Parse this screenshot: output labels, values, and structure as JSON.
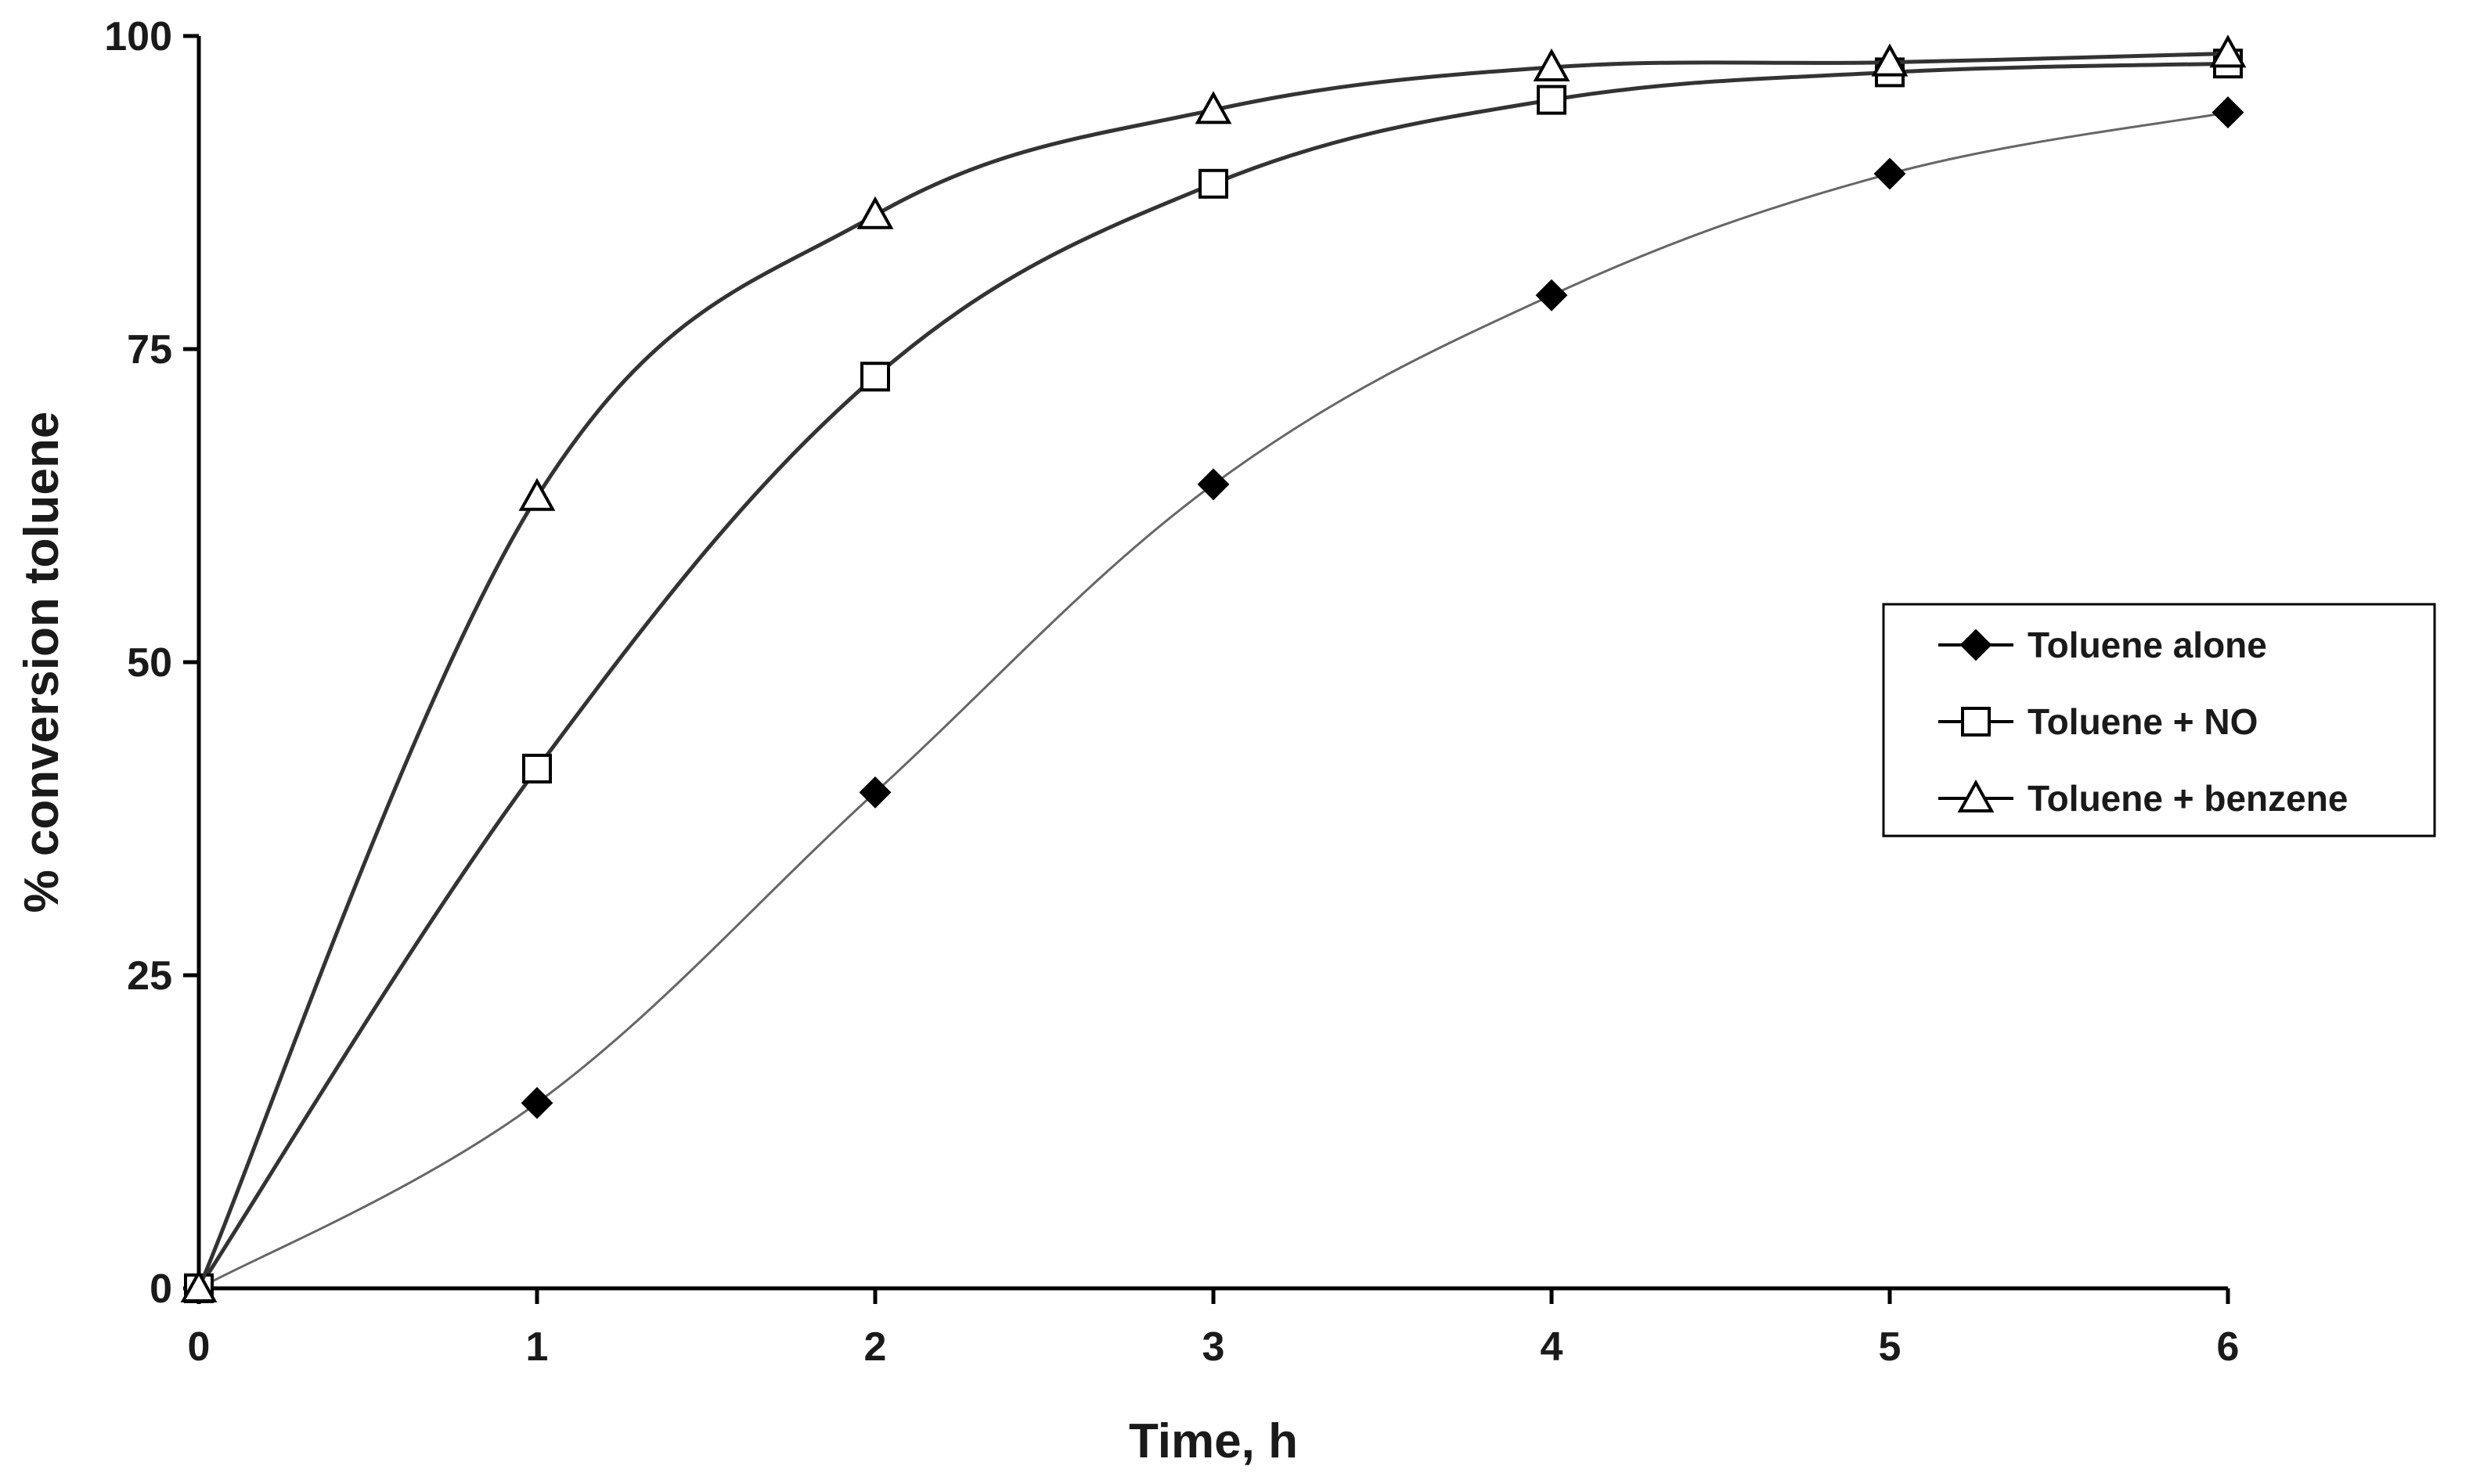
{
  "chart_data": {
    "type": "line",
    "title": "",
    "xlabel": "Time, h",
    "ylabel": "% conversion toluene",
    "xlim": [
      0,
      6
    ],
    "ylim": [
      0,
      100
    ],
    "x_ticks": [
      0,
      1,
      2,
      3,
      4,
      5,
      6
    ],
    "y_ticks": [
      0,
      25,
      50,
      75,
      100
    ],
    "grid": false,
    "smooth": true,
    "legend_position": "right",
    "x": [
      0,
      1,
      2,
      3,
      4,
      5,
      6
    ],
    "series": [
      {
        "name": "Toluene alone",
        "marker": "diamond-filled",
        "color": "#000000",
        "line_color": "#666666",
        "values": [
          0,
          14.8,
          39.6,
          64.2,
          79.3,
          89.0,
          93.9
        ]
      },
      {
        "name": "Toluene + NO",
        "marker": "square-open",
        "color": "#000000",
        "line_color": "#333333",
        "values": [
          0,
          41.5,
          72.8,
          88.2,
          94.9,
          97.1,
          97.8
        ]
      },
      {
        "name": "Toluene + benzene",
        "marker": "triangle-open",
        "color": "#000000",
        "line_color": "#333333",
        "values": [
          0,
          63.2,
          85.7,
          94.1,
          97.5,
          97.9,
          98.6
        ]
      }
    ]
  }
}
